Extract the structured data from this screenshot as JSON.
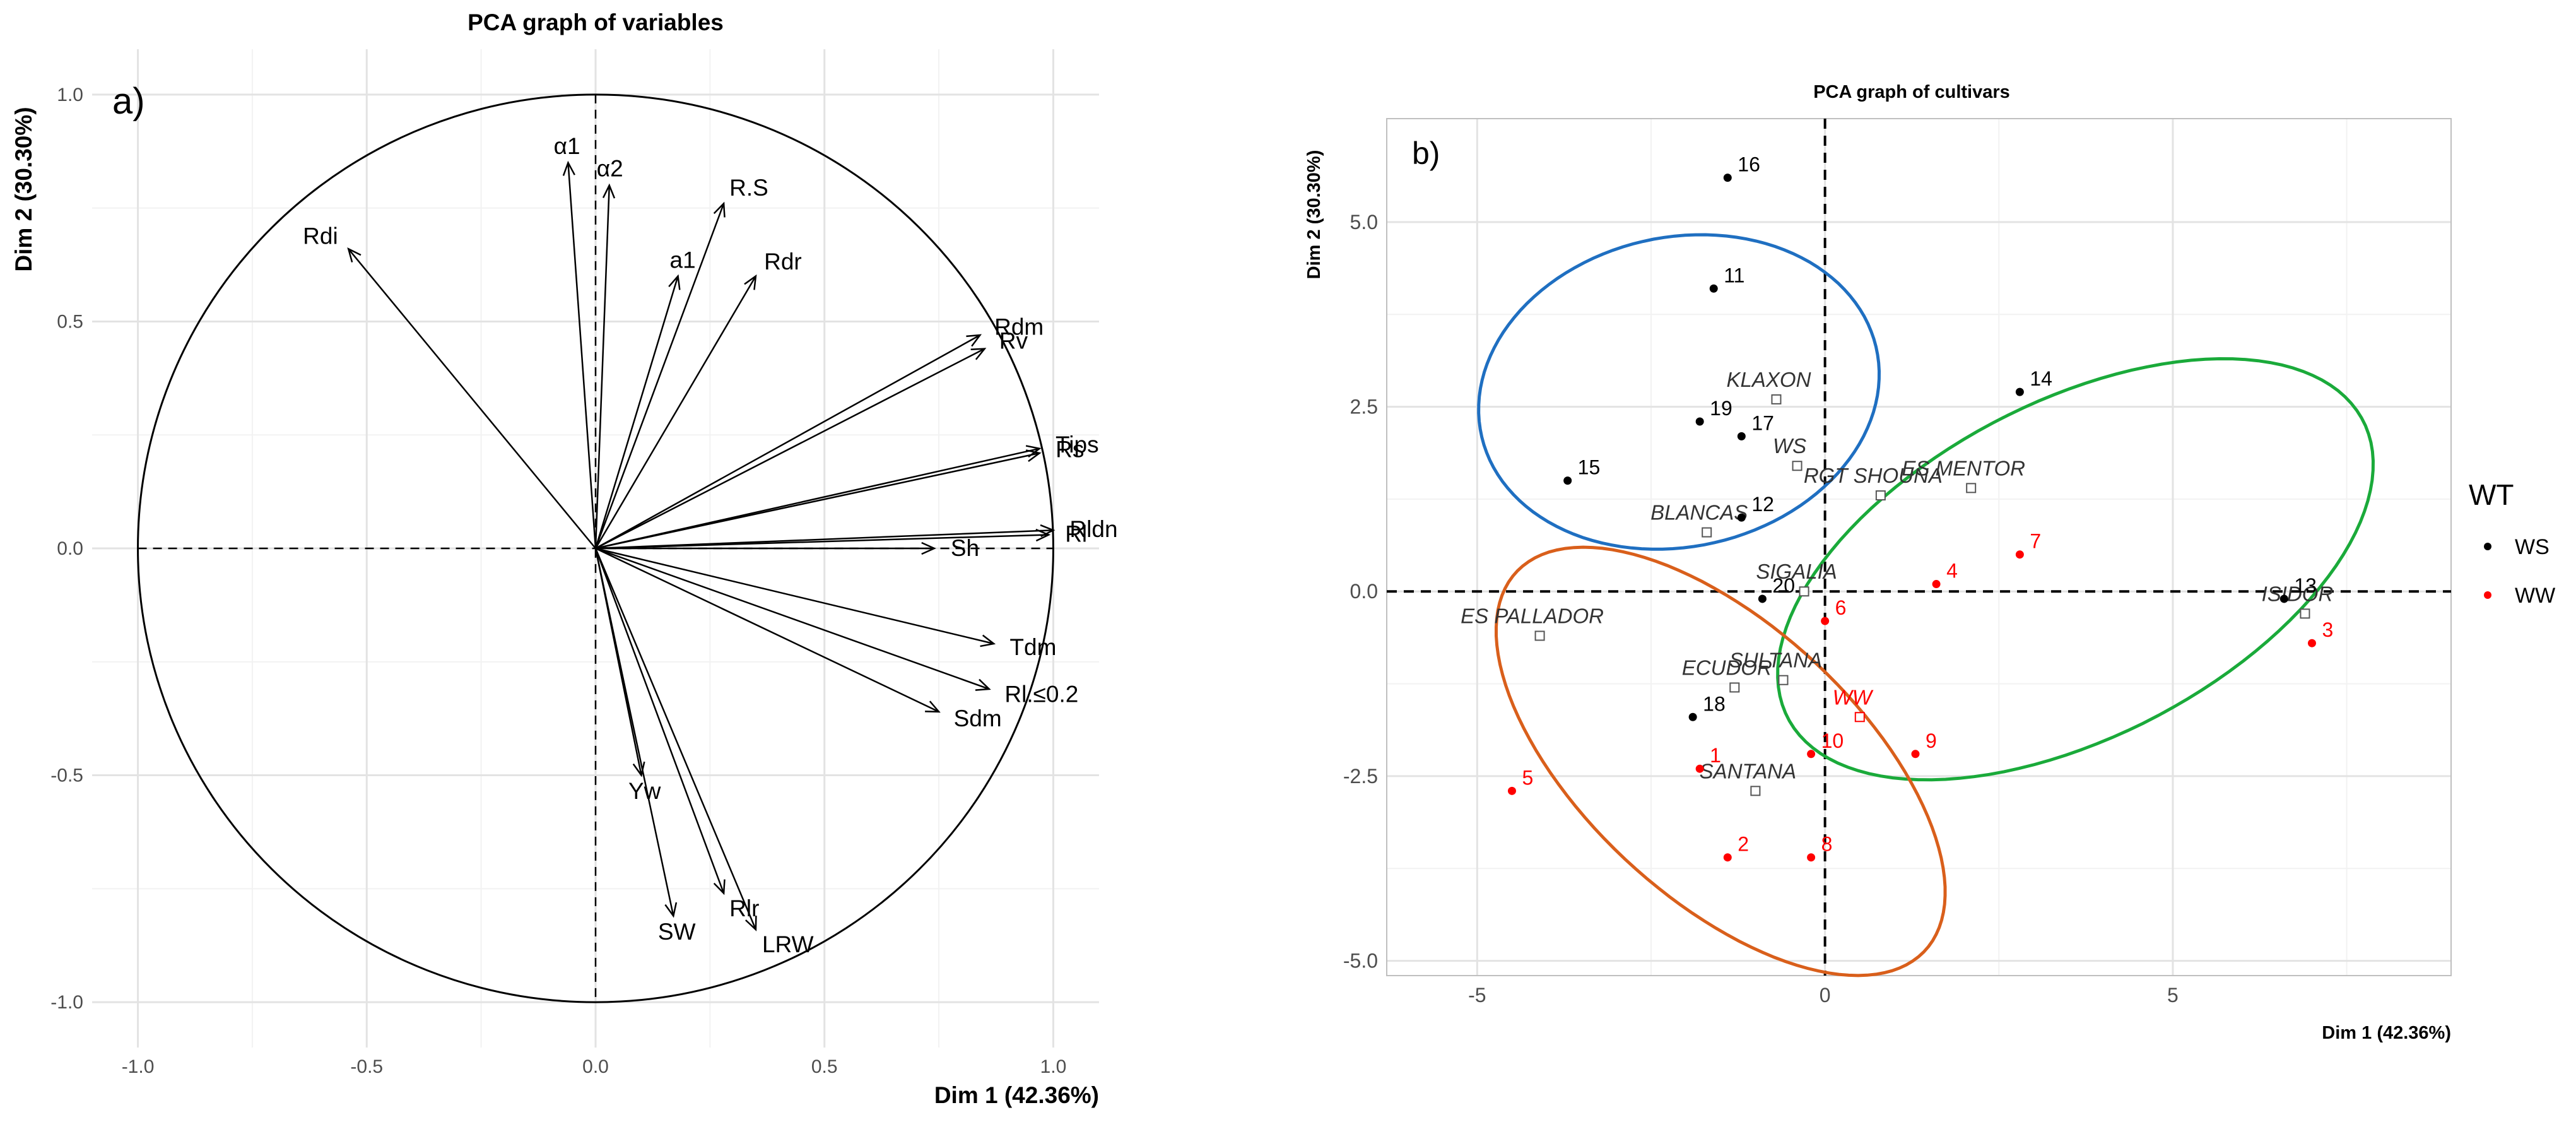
{
  "chart_data": [
    {
      "type": "scatter",
      "panel": "a)",
      "title": "PCA graph of variables",
      "xlabel": "Dim 1 (42.36%)",
      "ylabel": "Dim 2 (30.30%)",
      "xlim": [
        -1.1,
        1.1
      ],
      "ylim": [
        -1.1,
        1.1
      ],
      "xticks": [
        -1.0,
        -0.5,
        0.0,
        0.5,
        1.0
      ],
      "yticks": [
        -1.0,
        -0.5,
        0.0,
        0.5,
        1.0
      ],
      "xtick_labels": [
        "-1.0",
        "-0.5",
        "0.0",
        "0.5",
        "1.0"
      ],
      "ytick_labels": [
        "-1.0",
        "-0.5",
        "0.0",
        "0.5",
        "1.0"
      ],
      "grid": true,
      "vectors": [
        {
          "name": "Rdi",
          "x": -0.54,
          "y": 0.66
        },
        {
          "name": "α1",
          "x": -0.06,
          "y": 0.85
        },
        {
          "name": "α2",
          "x": 0.03,
          "y": 0.8
        },
        {
          "name": "R.S",
          "x": 0.28,
          "y": 0.76
        },
        {
          "name": "a1",
          "x": 0.18,
          "y": 0.6
        },
        {
          "name": "Rdr",
          "x": 0.35,
          "y": 0.6
        },
        {
          "name": "Rdm",
          "x": 0.84,
          "y": 0.47
        },
        {
          "name": "Rv",
          "x": 0.85,
          "y": 0.44
        },
        {
          "name": "Tips",
          "x": 0.97,
          "y": 0.22
        },
        {
          "name": "Rs",
          "x": 0.97,
          "y": 0.21
        },
        {
          "name": "Rldn",
          "x": 1.0,
          "y": 0.04
        },
        {
          "name": "Rl",
          "x": 0.99,
          "y": 0.03
        },
        {
          "name": "Sh",
          "x": 0.74,
          "y": 0.0
        },
        {
          "name": "Tdm",
          "x": 0.87,
          "y": -0.21
        },
        {
          "name": "Rl.≤0.2",
          "x": 0.86,
          "y": -0.31
        },
        {
          "name": "Sdm",
          "x": 0.75,
          "y": -0.36
        },
        {
          "name": "Yw",
          "x": 0.1,
          "y": -0.5
        },
        {
          "name": "SW",
          "x": 0.17,
          "y": -0.81
        },
        {
          "name": "Rlr",
          "x": 0.28,
          "y": -0.76
        },
        {
          "name": "LRW",
          "x": 0.35,
          "y": -0.84
        }
      ]
    },
    {
      "type": "scatter",
      "panel": "b)",
      "title": "PCA graph of cultivars",
      "xlabel": "Dim 1 (42.36%)",
      "ylabel": "Dim 2 (30.30%)",
      "xlim": [
        -6.3,
        9.0
      ],
      "ylim": [
        -5.2,
        6.4
      ],
      "xticks": [
        -5,
        0,
        5
      ],
      "yticks": [
        -5.0,
        -2.5,
        0.0,
        2.5,
        5.0
      ],
      "xtick_labels": [
        "-5",
        "0",
        "5"
      ],
      "ytick_labels": [
        "-5.0",
        "-2.5",
        "0.0",
        "2.5",
        "5.0"
      ],
      "grid": true,
      "legend": {
        "title": "WT",
        "position": "right",
        "entries": [
          {
            "label": "WS",
            "color": "#000000"
          },
          {
            "label": "WW",
            "color": "#ff0000"
          }
        ]
      },
      "points": [
        {
          "label": "16",
          "x": -1.4,
          "y": 5.6,
          "group": "WS"
        },
        {
          "label": "11",
          "x": -1.6,
          "y": 4.1,
          "group": "WS"
        },
        {
          "label": "19",
          "x": -1.8,
          "y": 2.3,
          "group": "WS"
        },
        {
          "label": "17",
          "x": -1.2,
          "y": 2.1,
          "group": "WS"
        },
        {
          "label": "15",
          "x": -3.7,
          "y": 1.5,
          "group": "WS"
        },
        {
          "label": "12",
          "x": -1.2,
          "y": 1.0,
          "group": "WS"
        },
        {
          "label": "14",
          "x": 2.8,
          "y": 2.7,
          "group": "WS"
        },
        {
          "label": "20",
          "x": -0.9,
          "y": -0.1,
          "group": "WS"
        },
        {
          "label": "18",
          "x": -1.9,
          "y": -1.7,
          "group": "WS"
        },
        {
          "label": "13",
          "x": 6.6,
          "y": -0.1,
          "group": "WS"
        },
        {
          "label": "7",
          "x": 2.8,
          "y": 0.5,
          "group": "WW"
        },
        {
          "label": "4",
          "x": 1.6,
          "y": 0.1,
          "group": "WW"
        },
        {
          "label": "6",
          "x": 0.0,
          "y": -0.4,
          "group": "WW"
        },
        {
          "label": "9",
          "x": 1.3,
          "y": -2.2,
          "group": "WW"
        },
        {
          "label": "10",
          "x": -0.2,
          "y": -2.2,
          "group": "WW"
        },
        {
          "label": "1",
          "x": -1.8,
          "y": -2.4,
          "group": "WW"
        },
        {
          "label": "5",
          "x": -4.5,
          "y": -2.7,
          "group": "WW"
        },
        {
          "label": "2",
          "x": -1.4,
          "y": -3.6,
          "group": "WW"
        },
        {
          "label": "8",
          "x": -0.2,
          "y": -3.6,
          "group": "WW"
        },
        {
          "label": "3",
          "x": 7.0,
          "y": -0.7,
          "group": "WW"
        }
      ],
      "cultivars": [
        {
          "label": "KLAXON",
          "x": -0.7,
          "y": 2.6
        },
        {
          "label": "WS",
          "x": -0.4,
          "y": 1.7
        },
        {
          "label": "ES MENTOR",
          "x": 2.1,
          "y": 1.4
        },
        {
          "label": "RGT SHOUNA",
          "x": 0.8,
          "y": 1.3
        },
        {
          "label": "BLANCAS",
          "x": -1.7,
          "y": 0.8
        },
        {
          "label": "SIGALIA",
          "x": -0.3,
          "y": 0.0
        },
        {
          "label": "ES PALLADOR",
          "x": -4.1,
          "y": -0.6
        },
        {
          "label": "SULTANA",
          "x": -0.6,
          "y": -1.2
        },
        {
          "label": "ECUDOR",
          "x": -1.3,
          "y": -1.3
        },
        {
          "label": "WW",
          "x": 0.5,
          "y": -1.7
        },
        {
          "label": "SANTANA",
          "x": -1.0,
          "y": -2.7
        },
        {
          "label": "ISIDOR",
          "x": 6.9,
          "y": -0.3
        }
      ],
      "ellipses": [
        {
          "name": "blue",
          "color": "#1f6fc1",
          "cx": -2.1,
          "cy": 2.7,
          "a": 2.1,
          "b": 2.9,
          "angle": 100
        },
        {
          "name": "green",
          "color": "#1aaa3a",
          "cx": 3.6,
          "cy": 0.3,
          "a": 4.6,
          "b": 2.3,
          "angle": 25
        },
        {
          "name": "orange",
          "color": "#d95f1b",
          "cx": -1.5,
          "cy": -2.3,
          "a": 3.9,
          "b": 1.9,
          "angle": -40
        }
      ]
    }
  ]
}
